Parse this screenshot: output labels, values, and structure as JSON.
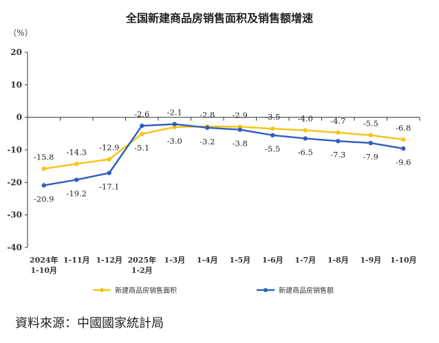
{
  "chart_data": {
    "type": "line",
    "title": "全国新建商品房销售面积及销售额增速",
    "unit": "（%）",
    "ylim": [
      -40,
      20
    ],
    "yticks": [
      20,
      10,
      0,
      -10,
      -20,
      -30,
      -40
    ],
    "grid": false,
    "legend_position": "bottom",
    "categories": [
      [
        "2024年",
        "1-10月"
      ],
      [
        "1-11月"
      ],
      [
        "1-12月"
      ],
      [
        "2025年",
        "1-2月"
      ],
      [
        "1-3月"
      ],
      [
        "1-4月"
      ],
      [
        "1-5月"
      ],
      [
        "1-6月"
      ],
      [
        "1-7月"
      ],
      [
        "1-8月"
      ],
      [
        "1-9月"
      ],
      [
        "1-10月"
      ]
    ],
    "series": [
      {
        "name": "新建商品房销售面积",
        "color": "#f5c518",
        "values": [
          -15.8,
          -14.3,
          -12.9,
          -5.1,
          -3.0,
          -2.8,
          -2.9,
          -3.5,
          -4.0,
          -4.7,
          -5.5,
          -6.8
        ],
        "labels": [
          "-15.8",
          "-14.3",
          "-12.9",
          "-5.1",
          "-3.0",
          "-2.8",
          "-2.9",
          "-3.5",
          "-4.0",
          "-4.7",
          "-5.5",
          "-6.8"
        ]
      },
      {
        "name": "新建商品房销售额",
        "color": "#2f5fbf",
        "values": [
          -20.9,
          -19.2,
          -17.1,
          -2.6,
          -2.1,
          -3.2,
          -3.8,
          -5.5,
          -6.5,
          -7.3,
          -7.9,
          -9.6
        ],
        "labels": [
          "-20.9",
          "-19.2",
          "-17.1",
          "-2.6",
          "-2.1",
          "-3.2",
          "-3.8",
          "-5.5",
          "-6.5",
          "-7.3",
          "-7.9",
          "-9.6"
        ]
      }
    ]
  },
  "source": "資料來源：中國國家統計局"
}
